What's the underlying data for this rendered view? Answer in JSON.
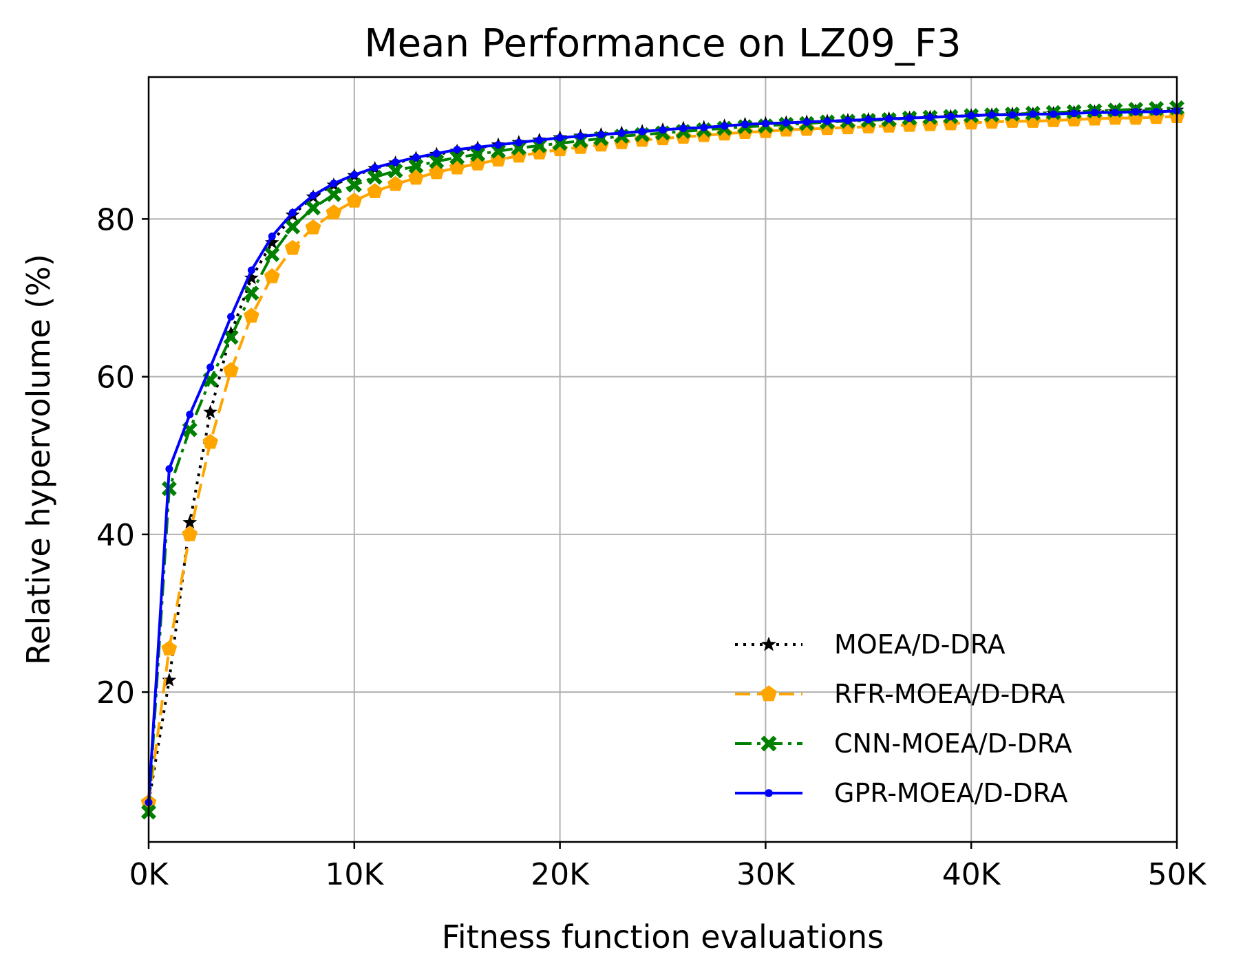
{
  "chart_data": {
    "type": "line",
    "title": "Mean Performance on LZ09_F3",
    "xlabel": "Fitness function evaluations",
    "ylabel": "Relative hypervolume (%)",
    "xlim": [
      0,
      50000
    ],
    "ylim": [
      1,
      98
    ],
    "xticks": [
      {
        "value": 0,
        "label": "0K"
      },
      {
        "value": 10000,
        "label": "10K"
      },
      {
        "value": 20000,
        "label": "20K"
      },
      {
        "value": 30000,
        "label": "30K"
      },
      {
        "value": 40000,
        "label": "40K"
      },
      {
        "value": 50000,
        "label": "50K"
      }
    ],
    "yticks": [
      {
        "value": 20,
        "label": "20"
      },
      {
        "value": 40,
        "label": "40"
      },
      {
        "value": 60,
        "label": "60"
      },
      {
        "value": 80,
        "label": "80"
      }
    ],
    "grid": true,
    "legend_position": "lower-right",
    "x": [
      0,
      1000,
      2000,
      3000,
      4000,
      5000,
      6000,
      7000,
      8000,
      9000,
      10000,
      11000,
      12000,
      13000,
      14000,
      15000,
      16000,
      17000,
      18000,
      19000,
      20000,
      21000,
      22000,
      23000,
      24000,
      25000,
      26000,
      27000,
      28000,
      29000,
      30000,
      31000,
      32000,
      33000,
      34000,
      35000,
      36000,
      37000,
      38000,
      39000,
      40000,
      41000,
      42000,
      43000,
      44000,
      45000,
      46000,
      47000,
      48000,
      49000,
      50000
    ],
    "series": [
      {
        "name": "MOEA/D-DRA",
        "color": "#000000",
        "dash": "dotted",
        "marker": "star",
        "values": [
          6.0,
          21.5,
          41.5,
          55.5,
          65.5,
          72.5,
          77.0,
          80.5,
          82.8,
          84.3,
          85.5,
          86.4,
          87.1,
          87.7,
          88.2,
          88.6,
          89.0,
          89.4,
          89.7,
          90.0,
          90.3,
          90.5,
          90.7,
          90.9,
          91.1,
          91.3,
          91.5,
          91.6,
          91.8,
          92.0,
          92.1,
          92.2,
          92.3,
          92.4,
          92.5,
          92.6,
          92.7,
          92.8,
          92.9,
          93.0,
          93.1,
          93.2,
          93.3,
          93.3,
          93.4,
          93.5,
          93.6,
          93.6,
          93.7,
          93.7,
          93.8
        ]
      },
      {
        "name": "RFR-MOEA/D-DRA",
        "color": "#ffa500",
        "dash": "dashed",
        "marker": "pentagon",
        "values": [
          6.0,
          25.5,
          40.0,
          51.7,
          60.8,
          67.7,
          72.7,
          76.3,
          78.9,
          80.8,
          82.3,
          83.5,
          84.4,
          85.2,
          85.9,
          86.5,
          87.0,
          87.5,
          88.0,
          88.4,
          88.8,
          89.1,
          89.4,
          89.7,
          90.0,
          90.2,
          90.4,
          90.6,
          90.8,
          91.0,
          91.1,
          91.3,
          91.4,
          91.5,
          91.6,
          91.7,
          91.8,
          91.9,
          92.0,
          92.1,
          92.2,
          92.3,
          92.4,
          92.4,
          92.5,
          92.6,
          92.7,
          92.8,
          92.8,
          92.9,
          93.0
        ]
      },
      {
        "name": "CNN-MOEA/D-DRA",
        "color": "#008000",
        "dash": "dashdot",
        "marker": "x",
        "values": [
          4.8,
          45.8,
          53.3,
          59.6,
          65.0,
          70.6,
          75.5,
          79.0,
          81.4,
          83.1,
          84.3,
          85.3,
          86.1,
          86.7,
          87.3,
          87.8,
          88.2,
          88.6,
          89.0,
          89.3,
          89.6,
          89.9,
          90.2,
          90.5,
          90.7,
          90.9,
          91.1,
          91.3,
          91.5,
          91.7,
          91.8,
          92.0,
          92.1,
          92.3,
          92.4,
          92.5,
          92.6,
          92.8,
          92.9,
          93.0,
          93.1,
          93.2,
          93.3,
          93.4,
          93.5,
          93.6,
          93.7,
          93.8,
          93.9,
          94.0,
          94.1
        ]
      },
      {
        "name": "GPR-MOEA/D-DRA",
        "color": "#0000ff",
        "dash": "solid",
        "marker": "dot",
        "values": [
          6.0,
          48.3,
          55.2,
          61.2,
          67.6,
          73.5,
          77.8,
          80.8,
          83.0,
          84.5,
          85.6,
          86.5,
          87.2,
          87.8,
          88.3,
          88.8,
          89.1,
          89.4,
          89.7,
          90.0,
          90.3,
          90.5,
          90.7,
          90.9,
          91.1,
          91.3,
          91.5,
          91.6,
          91.8,
          92.0,
          92.1,
          92.2,
          92.3,
          92.4,
          92.5,
          92.6,
          92.7,
          92.8,
          92.9,
          93.0,
          93.1,
          93.2,
          93.2,
          93.3,
          93.3,
          93.4,
          93.5,
          93.5,
          93.6,
          93.6,
          93.7
        ]
      }
    ]
  }
}
